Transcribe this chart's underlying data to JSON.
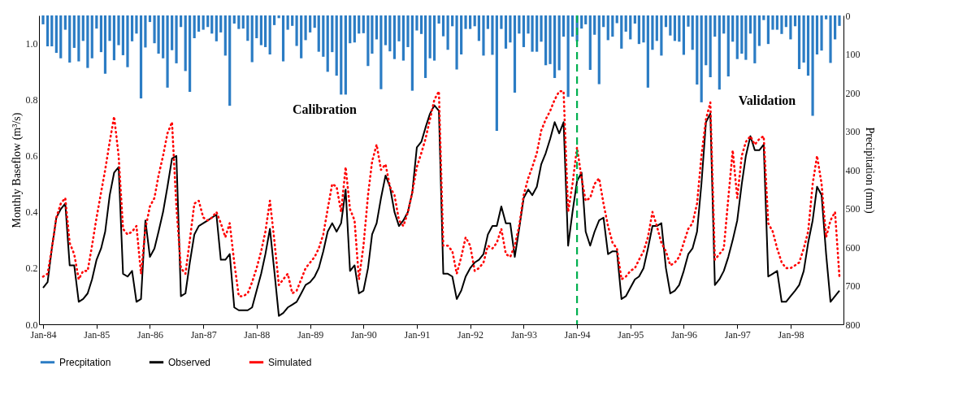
{
  "chart_data": {
    "type": "line",
    "ylabel": "Monthly Baseflow (m³/s)",
    "y2label": "Precipitation (mm)",
    "x": [
      "1984-01",
      "1984-02",
      "1984-03",
      "1984-04",
      "1984-05",
      "1984-06",
      "1984-07",
      "1984-08",
      "1984-09",
      "1984-10",
      "1984-11",
      "1984-12",
      "1985-01",
      "1985-02",
      "1985-03",
      "1985-04",
      "1985-05",
      "1985-06",
      "1985-07",
      "1985-08",
      "1985-09",
      "1985-10",
      "1985-11",
      "1985-12",
      "1986-01",
      "1986-02",
      "1986-03",
      "1986-04",
      "1986-05",
      "1986-06",
      "1986-07",
      "1986-08",
      "1986-09",
      "1986-10",
      "1986-11",
      "1986-12",
      "1987-01",
      "1987-02",
      "1987-03",
      "1987-04",
      "1987-05",
      "1987-06",
      "1987-07",
      "1987-08",
      "1987-09",
      "1987-10",
      "1987-11",
      "1987-12",
      "1988-01",
      "1988-02",
      "1988-03",
      "1988-04",
      "1988-05",
      "1988-06",
      "1988-07",
      "1988-08",
      "1988-09",
      "1988-10",
      "1988-11",
      "1988-12",
      "1989-01",
      "1989-02",
      "1989-03",
      "1989-04",
      "1989-05",
      "1989-06",
      "1989-07",
      "1989-08",
      "1989-09",
      "1989-10",
      "1989-11",
      "1989-12",
      "1990-01",
      "1990-02",
      "1990-03",
      "1990-04",
      "1990-05",
      "1990-06",
      "1990-07",
      "1990-08",
      "1990-09",
      "1990-10",
      "1990-11",
      "1990-12",
      "1991-01",
      "1991-02",
      "1991-03",
      "1991-04",
      "1991-05",
      "1991-06",
      "1991-07",
      "1991-08",
      "1991-09",
      "1991-10",
      "1991-11",
      "1991-12",
      "1992-01",
      "1992-02",
      "1992-03",
      "1992-04",
      "1992-05",
      "1992-06",
      "1992-07",
      "1992-08",
      "1992-09",
      "1992-10",
      "1992-11",
      "1992-12",
      "1993-01",
      "1993-02",
      "1993-03",
      "1993-04",
      "1993-05",
      "1993-06",
      "1993-07",
      "1993-08",
      "1993-09",
      "1993-10",
      "1993-11",
      "1993-12",
      "1994-01",
      "1994-02",
      "1994-03",
      "1994-04",
      "1994-05",
      "1994-06",
      "1994-07",
      "1994-08",
      "1994-09",
      "1994-10",
      "1994-11",
      "1994-12",
      "1995-01",
      "1995-02",
      "1995-03",
      "1995-04",
      "1995-05",
      "1995-06",
      "1995-07",
      "1995-08",
      "1995-09",
      "1995-10",
      "1995-11",
      "1995-12",
      "1996-01",
      "1996-02",
      "1996-03",
      "1996-04",
      "1996-05",
      "1996-06",
      "1996-07",
      "1996-08",
      "1996-09",
      "1996-10",
      "1996-11",
      "1996-12",
      "1997-01",
      "1997-02",
      "1997-03",
      "1997-04",
      "1997-05",
      "1997-06",
      "1997-07",
      "1997-08",
      "1997-09",
      "1997-10",
      "1997-11",
      "1997-12",
      "1998-01",
      "1998-02",
      "1998-03",
      "1998-04",
      "1998-05",
      "1998-06",
      "1998-07",
      "1998-08",
      "1998-09",
      "1998-10",
      "1998-11",
      "1998-12"
    ],
    "xlim": [
      "1984-01",
      "1998-12"
    ],
    "xticks": [
      {
        "value": "1984-01",
        "label": "Jan-84"
      },
      {
        "value": "1985-01",
        "label": "Jan-85"
      },
      {
        "value": "1986-01",
        "label": "Jan-86"
      },
      {
        "value": "1987-01",
        "label": "Jan-87"
      },
      {
        "value": "1988-01",
        "label": "Jan-88"
      },
      {
        "value": "1989-01",
        "label": "Jan-89"
      },
      {
        "value": "1990-01",
        "label": "Jan-90"
      },
      {
        "value": "1991-01",
        "label": "Jan-91"
      },
      {
        "value": "1992-01",
        "label": "Jan-92"
      },
      {
        "value": "1993-01",
        "label": "Jan-93"
      },
      {
        "value": "1994-01",
        "label": "Jan-94"
      },
      {
        "value": "1995-01",
        "label": "Jan-95"
      },
      {
        "value": "1996-01",
        "label": "Jan-96"
      },
      {
        "value": "1997-01",
        "label": "Jan-97"
      },
      {
        "value": "1998-01",
        "label": "Jan-98"
      }
    ],
    "ylim": [
      0,
      1.1
    ],
    "yticks": [
      {
        "value": 0,
        "label": "0.0"
      },
      {
        "value": 0.2,
        "label": "0.2"
      },
      {
        "value": 0.4,
        "label": "0.4"
      },
      {
        "value": 0.6,
        "label": "0.6"
      },
      {
        "value": 0.8,
        "label": "0.8"
      },
      {
        "value": 1.0,
        "label": "1.0"
      }
    ],
    "y2lim": [
      800,
      0
    ],
    "y2ticks": [
      0,
      100,
      200,
      300,
      400,
      500,
      600,
      700,
      800
    ],
    "legend": "bottom",
    "series": [
      {
        "name": "Precpitation",
        "type": "bar",
        "axis": "y2",
        "color": "#2b7cc4",
        "values": [
          23,
          80,
          80,
          97,
          111,
          37,
          122,
          84,
          119,
          66,
          136,
          111,
          34,
          95,
          151,
          66,
          116,
          77,
          103,
          134,
          67,
          47,
          215,
          83,
          17,
          72,
          99,
          111,
          187,
          90,
          124,
          30,
          144,
          198,
          59,
          42,
          37,
          30,
          47,
          67,
          44,
          104,
          234,
          21,
          35,
          34,
          66,
          121,
          59,
          77,
          82,
          101,
          25,
          7,
          119,
          37,
          27,
          79,
          111,
          64,
          44,
          32,
          94,
          107,
          146,
          95,
          156,
          205,
          205,
          72,
          70,
          47,
          46,
          131,
          99,
          62,
          191,
          77,
          93,
          113,
          67,
          117,
          82,
          195,
          39,
          48,
          162,
          111,
          117,
          21,
          54,
          89,
          28,
          140,
          101,
          35,
          35,
          28,
          66,
          104,
          35,
          102,
          299,
          35,
          86,
          70,
          200,
          47,
          82,
          47,
          94,
          94,
          68,
          129,
          126,
          162,
          142,
          55,
          211,
          55,
          67,
          34,
          23,
          141,
          50,
          178,
          30,
          64,
          55,
          20,
          86,
          42,
          62,
          21,
          74,
          70,
          187,
          89,
          66,
          104,
          30,
          52,
          66,
          68,
          102,
          29,
          89,
          179,
          225,
          129,
          160,
          55,
          192,
          47,
          158,
          68,
          113,
          99,
          115,
          47,
          124,
          79,
          12,
          74,
          37,
          37,
          48,
          30,
          62,
          28,
          139,
          122,
          156,
          260,
          101,
          91,
          10,
          123,
          62,
          27
        ]
      },
      {
        "name": "Observed",
        "color": "#000000",
        "line_style": "solid",
        "values": [
          0.13,
          0.15,
          0.27,
          0.38,
          0.41,
          0.43,
          0.21,
          0.21,
          0.08,
          0.09,
          0.11,
          0.16,
          0.23,
          0.27,
          0.33,
          0.46,
          0.54,
          0.56,
          0.18,
          0.17,
          0.19,
          0.08,
          0.09,
          0.37,
          0.24,
          0.27,
          0.33,
          0.4,
          0.49,
          0.59,
          0.6,
          0.1,
          0.11,
          0.22,
          0.32,
          0.35,
          0.36,
          0.37,
          0.38,
          0.39,
          0.23,
          0.23,
          0.25,
          0.06,
          0.05,
          0.05,
          0.05,
          0.06,
          0.12,
          0.18,
          0.25,
          0.34,
          0.19,
          0.03,
          0.04,
          0.06,
          0.07,
          0.08,
          0.11,
          0.14,
          0.15,
          0.17,
          0.2,
          0.26,
          0.33,
          0.36,
          0.33,
          0.36,
          0.48,
          0.19,
          0.21,
          0.11,
          0.12,
          0.2,
          0.32,
          0.36,
          0.45,
          0.53,
          0.49,
          0.4,
          0.35,
          0.37,
          0.4,
          0.47,
          0.63,
          0.65,
          0.7,
          0.75,
          0.78,
          0.76,
          0.18,
          0.18,
          0.17,
          0.09,
          0.12,
          0.17,
          0.2,
          0.22,
          0.23,
          0.25,
          0.32,
          0.35,
          0.35,
          0.42,
          0.36,
          0.36,
          0.24,
          0.34,
          0.45,
          0.48,
          0.46,
          0.49,
          0.57,
          0.61,
          0.66,
          0.72,
          0.68,
          0.72,
          0.28,
          0.4,
          0.51,
          0.54,
          0.33,
          0.28,
          0.33,
          0.37,
          0.38,
          0.25,
          0.26,
          0.26,
          0.09,
          0.1,
          0.13,
          0.16,
          0.17,
          0.2,
          0.27,
          0.35,
          0.35,
          0.36,
          0.2,
          0.11,
          0.12,
          0.14,
          0.19,
          0.25,
          0.27,
          0.33,
          0.5,
          0.72,
          0.75,
          0.14,
          0.16,
          0.19,
          0.24,
          0.3,
          0.37,
          0.5,
          0.6,
          0.67,
          0.62,
          0.62,
          0.64,
          0.17,
          0.18,
          0.19,
          0.08,
          0.08,
          0.1,
          0.12,
          0.14,
          0.19,
          0.29,
          0.37,
          0.49,
          0.46,
          0.25,
          0.08,
          0.1,
          0.12
        ]
      },
      {
        "name": "Simulated",
        "color": "#ff0000",
        "line_style": "dotted",
        "values": [
          0.17,
          0.18,
          0.27,
          0.38,
          0.43,
          0.45,
          0.29,
          0.25,
          0.16,
          0.19,
          0.19,
          0.28,
          0.38,
          0.47,
          0.55,
          0.65,
          0.74,
          0.6,
          0.34,
          0.32,
          0.33,
          0.35,
          0.18,
          0.34,
          0.42,
          0.45,
          0.53,
          0.6,
          0.68,
          0.72,
          0.42,
          0.2,
          0.18,
          0.3,
          0.43,
          0.44,
          0.38,
          0.37,
          0.38,
          0.4,
          0.36,
          0.31,
          0.36,
          0.22,
          0.1,
          0.1,
          0.11,
          0.15,
          0.2,
          0.26,
          0.33,
          0.44,
          0.3,
          0.14,
          0.16,
          0.18,
          0.11,
          0.12,
          0.16,
          0.2,
          0.22,
          0.24,
          0.27,
          0.32,
          0.41,
          0.5,
          0.49,
          0.4,
          0.56,
          0.41,
          0.37,
          0.16,
          0.28,
          0.46,
          0.58,
          0.64,
          0.55,
          0.57,
          0.49,
          0.46,
          0.37,
          0.35,
          0.4,
          0.47,
          0.56,
          0.61,
          0.66,
          0.73,
          0.8,
          0.83,
          0.28,
          0.28,
          0.26,
          0.18,
          0.24,
          0.31,
          0.28,
          0.19,
          0.2,
          0.22,
          0.28,
          0.27,
          0.29,
          0.34,
          0.25,
          0.24,
          0.28,
          0.35,
          0.46,
          0.52,
          0.56,
          0.61,
          0.69,
          0.73,
          0.76,
          0.8,
          0.83,
          0.83,
          0.4,
          0.5,
          0.63,
          0.52,
          0.44,
          0.45,
          0.5,
          0.52,
          0.43,
          0.35,
          0.29,
          0.27,
          0.16,
          0.17,
          0.19,
          0.2,
          0.23,
          0.26,
          0.31,
          0.4,
          0.35,
          0.29,
          0.26,
          0.21,
          0.22,
          0.24,
          0.29,
          0.34,
          0.36,
          0.43,
          0.6,
          0.73,
          0.79,
          0.23,
          0.25,
          0.27,
          0.45,
          0.62,
          0.45,
          0.6,
          0.65,
          0.67,
          0.64,
          0.66,
          0.67,
          0.36,
          0.33,
          0.27,
          0.22,
          0.2,
          0.2,
          0.21,
          0.22,
          0.27,
          0.33,
          0.5,
          0.6,
          0.5,
          0.31,
          0.37,
          0.4,
          0.17
        ]
      }
    ],
    "ref_lines": [
      {
        "axis": "x",
        "value": "1994-01",
        "color": "#00b050",
        "line_style": "dashed"
      }
    ],
    "annotations": [
      "Calibration",
      "Validation"
    ]
  }
}
